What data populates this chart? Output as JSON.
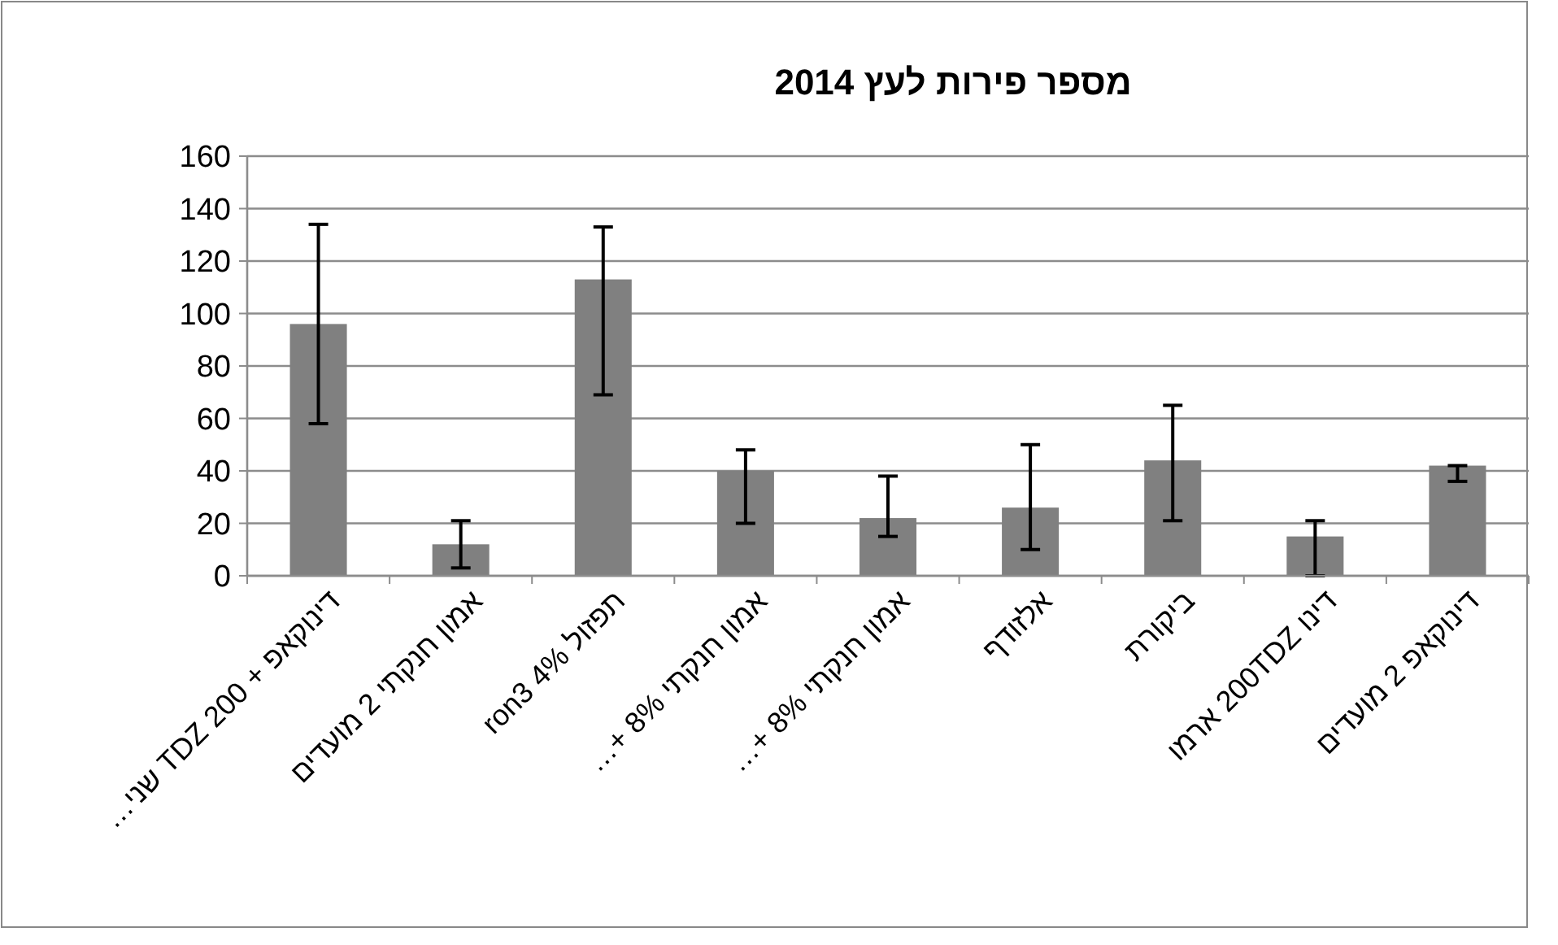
{
  "chart_data": {
    "type": "bar",
    "title": "מספר פירות לעץ 2014",
    "categories": [
      "דינוקאפ + 200 TDZ שני…",
      "אמון חנקתי 2 מועדים",
      "תפזול 4% ron3",
      "אמון חנקתי 8% +…",
      "אמון חנקתי 8% +…",
      "אלזודף",
      "ביקורת",
      "דינו 200TDZ ארמו",
      "דינוקאפ 2 מועדים"
    ],
    "values": [
      96,
      12,
      113,
      40,
      22,
      26,
      44,
      15,
      42
    ],
    "errors": [
      [
        58,
        134
      ],
      [
        3,
        21
      ],
      [
        69,
        133
      ],
      [
        20,
        48
      ],
      [
        15,
        38
      ],
      [
        10,
        50
      ],
      [
        21,
        65
      ],
      [
        0,
        21
      ],
      [
        36,
        42
      ]
    ],
    "color": "#808080",
    "ylim": [
      0,
      160
    ],
    "yticks": [
      0,
      20,
      40,
      60,
      80,
      100,
      120,
      140,
      160
    ],
    "grid": "y"
  }
}
